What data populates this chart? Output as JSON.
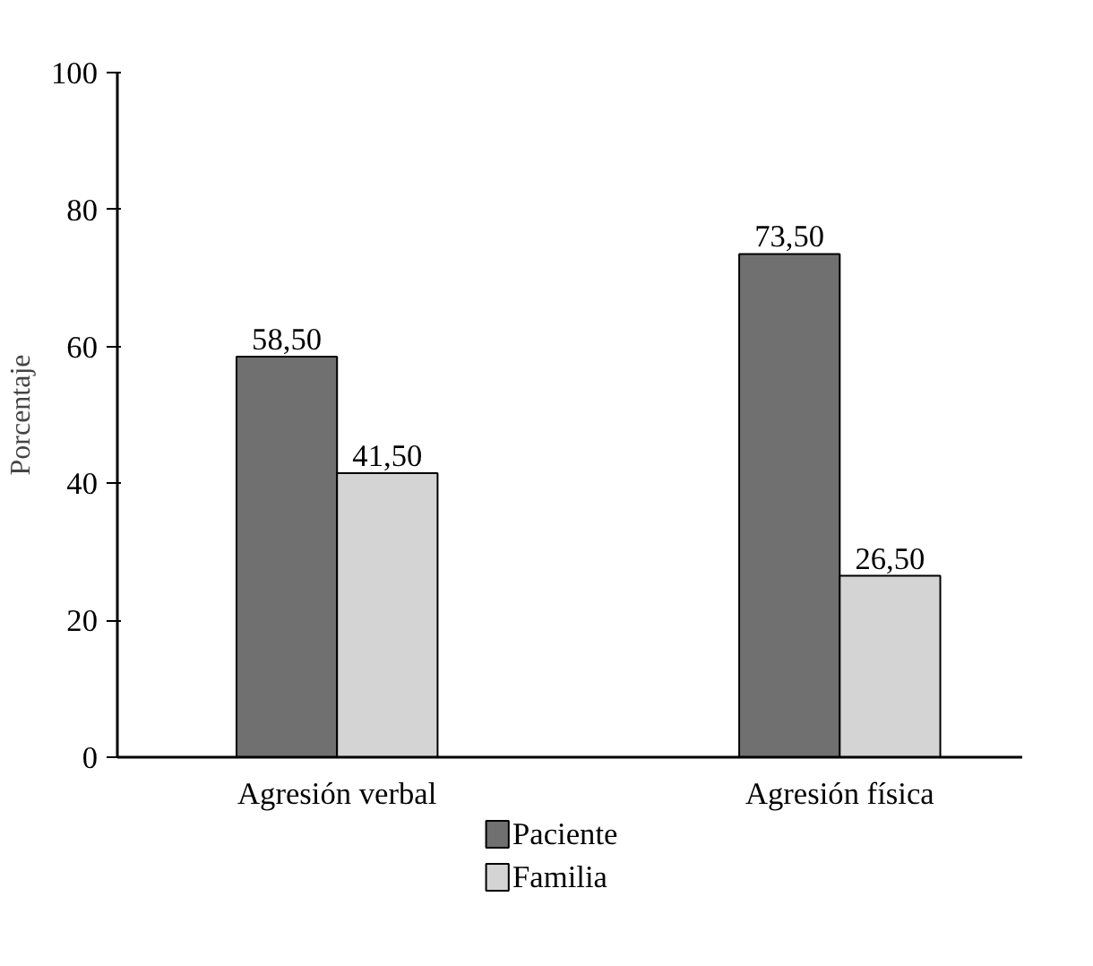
{
  "chart_data": {
    "type": "bar",
    "ylabel": "Porcentaje",
    "categories": [
      "Agresión verbal",
      "Agresión física"
    ],
    "series": [
      {
        "name": "Paciente",
        "color": "#707070",
        "values": [
          58.5,
          73.5
        ],
        "value_labels": [
          "58,50",
          "73,50"
        ]
      },
      {
        "name": "Familia",
        "color": "#d4d4d4",
        "values": [
          41.5,
          26.5
        ],
        "value_labels": [
          "41,50",
          "26,50"
        ]
      }
    ],
    "ylim": [
      0,
      100
    ],
    "yticks": [
      0,
      20,
      40,
      60,
      80,
      100
    ],
    "grid": false,
    "legend": "bottom"
  }
}
